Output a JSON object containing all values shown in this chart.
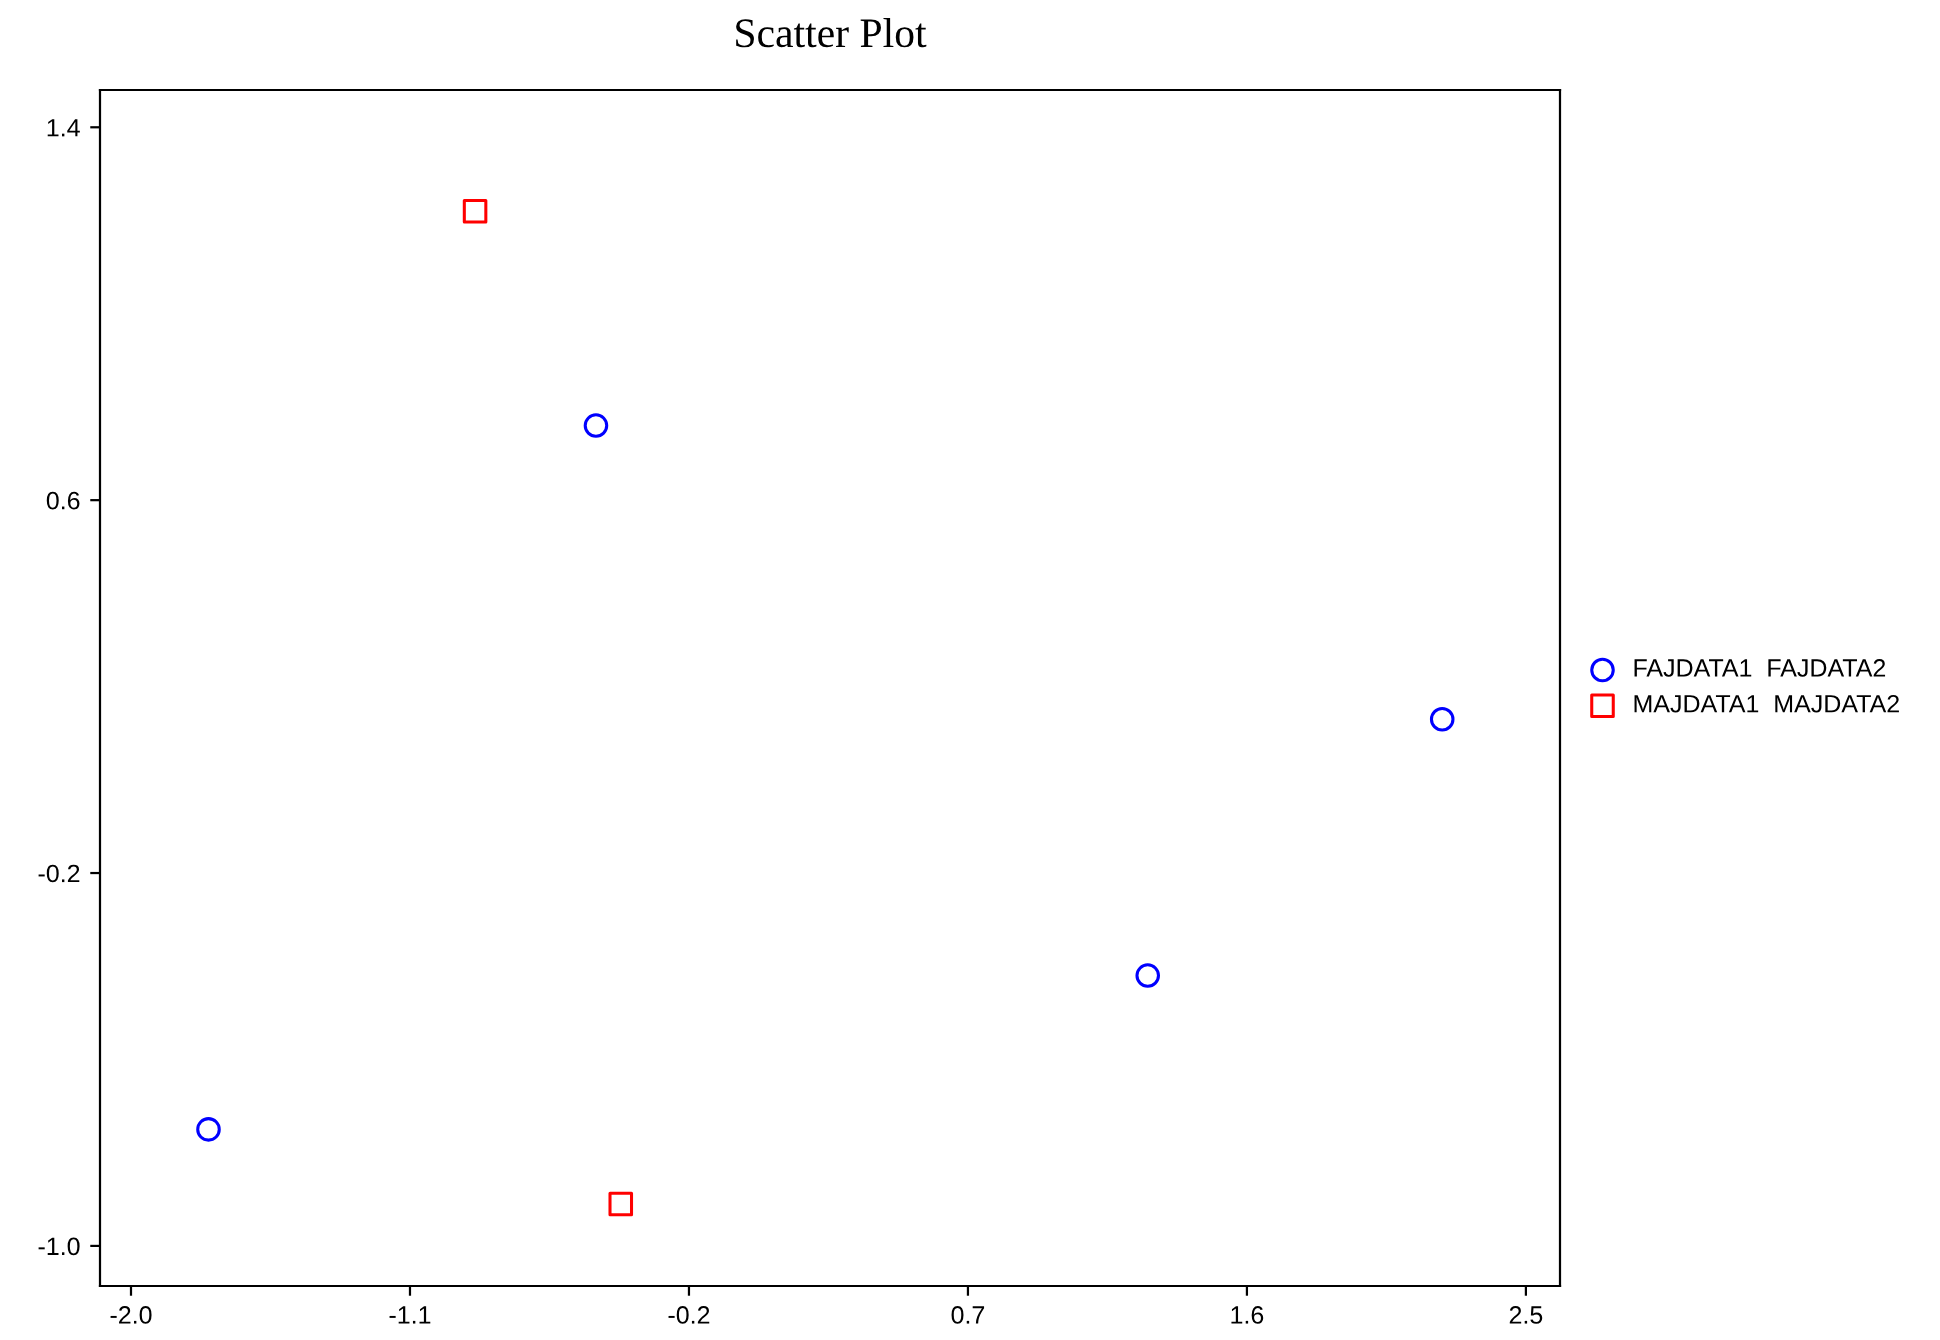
{
  "chart_data": {
    "type": "scatter",
    "title": "Scatter Plot",
    "series": [
      {
        "name": "FAJDATA1  FAJDATA2",
        "color": "#0000ff",
        "marker": "circle",
        "x": [
          -0.5,
          2.23,
          1.28,
          -1.75
        ],
        "values": [
          0.76,
          0.13,
          -0.42,
          -0.75
        ]
      },
      {
        "name": "MAJDATA1  MAJDATA2",
        "color": "#ff0000",
        "marker": "square",
        "x": [
          -0.89,
          -0.42
        ],
        "values": [
          1.22,
          -0.91
        ]
      }
    ],
    "xlim": [
      -2.1,
      2.61
    ],
    "ylim": [
      -1.086,
      1.48
    ],
    "xticks": [
      {
        "value": -2.0,
        "label": "-2.0"
      },
      {
        "value": -1.1,
        "label": "-1.1"
      },
      {
        "value": -0.2,
        "label": "-0.2"
      },
      {
        "value": 0.7,
        "label": "0.7"
      },
      {
        "value": 1.6,
        "label": "1.6"
      },
      {
        "value": 2.5,
        "label": "2.5"
      }
    ],
    "yticks": [
      {
        "value": -1.0,
        "label": "-1.0"
      },
      {
        "value": -0.2,
        "label": "-0.2"
      },
      {
        "value": 0.6,
        "label": "0.6"
      },
      {
        "value": 1.4,
        "label": "1.4"
      }
    ],
    "grid": false,
    "legend": "right"
  }
}
